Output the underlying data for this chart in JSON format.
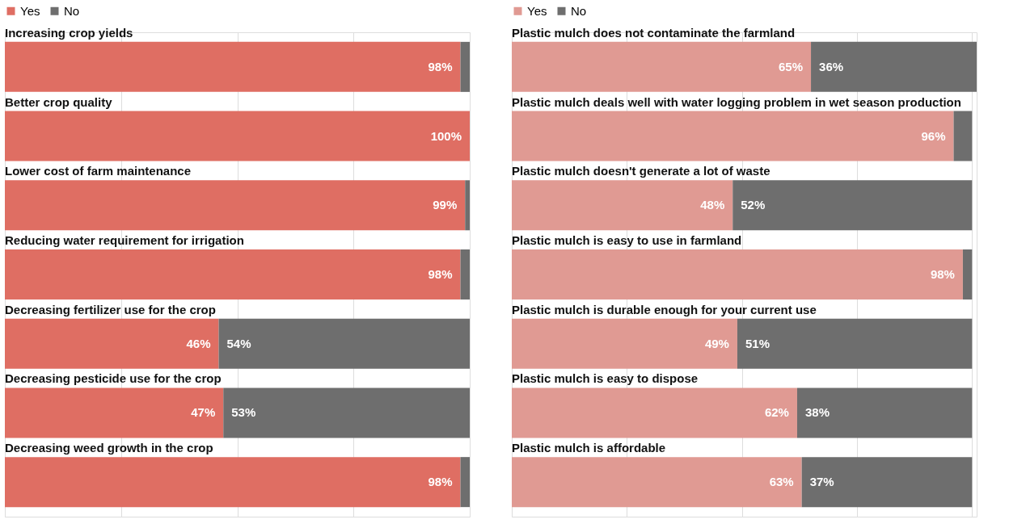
{
  "chart_data": [
    {
      "type": "bar",
      "orientation": "horizontal",
      "stacked": true,
      "categories": [
        "Increasing crop yields",
        "Better crop quality",
        "Lower cost of farm maintenance",
        "Reducing water requirement for irrigation",
        "Decreasing fertilizer use for the crop",
        "Decreasing pesticide use for the crop",
        "Decreasing weed growth in the crop"
      ],
      "series": [
        {
          "name": "Yes",
          "color": "#df6e63",
          "values": [
            98,
            100,
            99,
            98,
            46,
            47,
            98
          ],
          "value_labels": [
            "98%",
            "100%",
            "99%",
            "98%",
            "46%",
            "47%",
            "98%"
          ]
        },
        {
          "name": "No",
          "color": "#6e6e6e",
          "values": [
            2,
            0,
            1,
            2,
            54,
            53,
            2
          ],
          "value_labels": [
            null,
            null,
            null,
            null,
            "54%",
            "53%",
            null
          ]
        }
      ],
      "xlim": [
        0,
        100
      ],
      "xticks": [
        0,
        25,
        50,
        75,
        100
      ],
      "grid": "x",
      "legend": "top",
      "tick_labels": false
    },
    {
      "type": "bar",
      "orientation": "horizontal",
      "stacked": true,
      "categories": [
        "Plastic mulch does not contaminate the farmland",
        "Plastic mulch deals well with water logging problem in  wet season production",
        "Plastic mulch doesn't generate a lot of waste",
        "Plastic mulch is easy to use in farmland",
        "Plastic mulch is durable enough for your current use",
        "Plastic mulch is easy to dispose",
        "Plastic mulch is affordable"
      ],
      "series": [
        {
          "name": "Yes",
          "color": "#e09a93",
          "values": [
            65,
            96,
            48,
            98,
            49,
            62,
            63
          ],
          "value_labels": [
            "65%",
            "96%",
            "48%",
            "98%",
            "49%",
            "62%",
            "63%"
          ]
        },
        {
          "name": "No",
          "color": "#6e6e6e",
          "values": [
            36,
            4,
            52,
            2,
            51,
            38,
            37
          ],
          "value_labels": [
            "36%",
            null,
            "52%",
            null,
            "51%",
            "38%",
            "37%"
          ]
        }
      ],
      "xlim": [
        0,
        101
      ],
      "xticks": [
        0,
        25,
        50,
        75,
        100
      ],
      "grid": "x",
      "legend": "top",
      "tick_labels": false
    }
  ]
}
